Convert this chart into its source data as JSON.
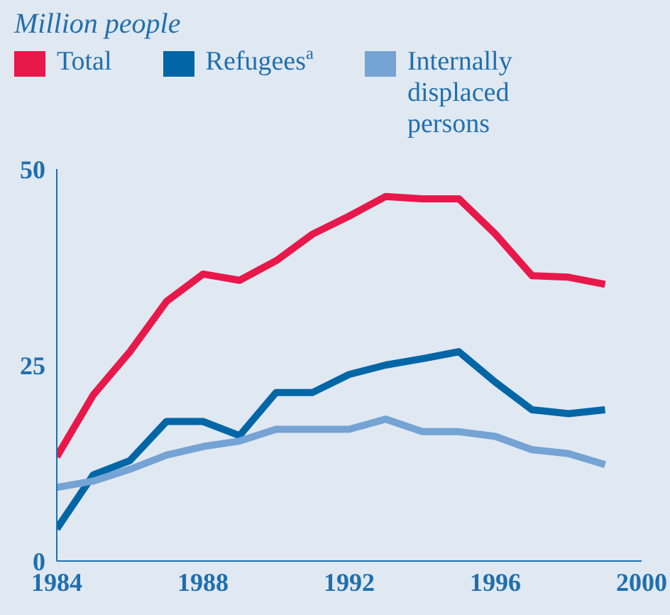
{
  "chart_data": {
    "type": "line",
    "title": "Million people",
    "x": [
      1984,
      1985,
      1986,
      1987,
      1988,
      1989,
      1990,
      1991,
      1992,
      1993,
      1994,
      1995,
      1996,
      1997,
      1998,
      1999
    ],
    "series": [
      {
        "name": "Total",
        "color": "#e8184a",
        "values": [
          13.3,
          21.2,
          26.7,
          33.1,
          36.6,
          35.8,
          38.3,
          41.7,
          44.0,
          46.5,
          46.2,
          46.2,
          41.7,
          36.4,
          36.2,
          35.3
        ]
      },
      {
        "name": "Refugees$^{a}$",
        "color": "#0066a6",
        "values": [
          4.1,
          11.0,
          12.8,
          17.8,
          17.8,
          16.0,
          21.5,
          21.5,
          23.8,
          25.0,
          25.8,
          26.7,
          22.8,
          19.3,
          18.8,
          19.3
        ]
      },
      {
        "name": "Internally displaced persons",
        "color": "#74a3d4",
        "values": [
          9.4,
          10.2,
          11.7,
          13.5,
          14.6,
          15.3,
          16.8,
          16.8,
          16.8,
          18.1,
          16.5,
          16.5,
          15.9,
          14.2,
          13.7,
          12.3
        ]
      }
    ],
    "xlim": [
      1984,
      2000
    ],
    "xticks": [
      1984,
      1988,
      1992,
      1996,
      2000
    ],
    "ylim": [
      0,
      50
    ],
    "yticks": [
      0,
      25,
      50
    ],
    "grid": false,
    "legend": "top",
    "marker": "none",
    "line_style": "solid"
  }
}
